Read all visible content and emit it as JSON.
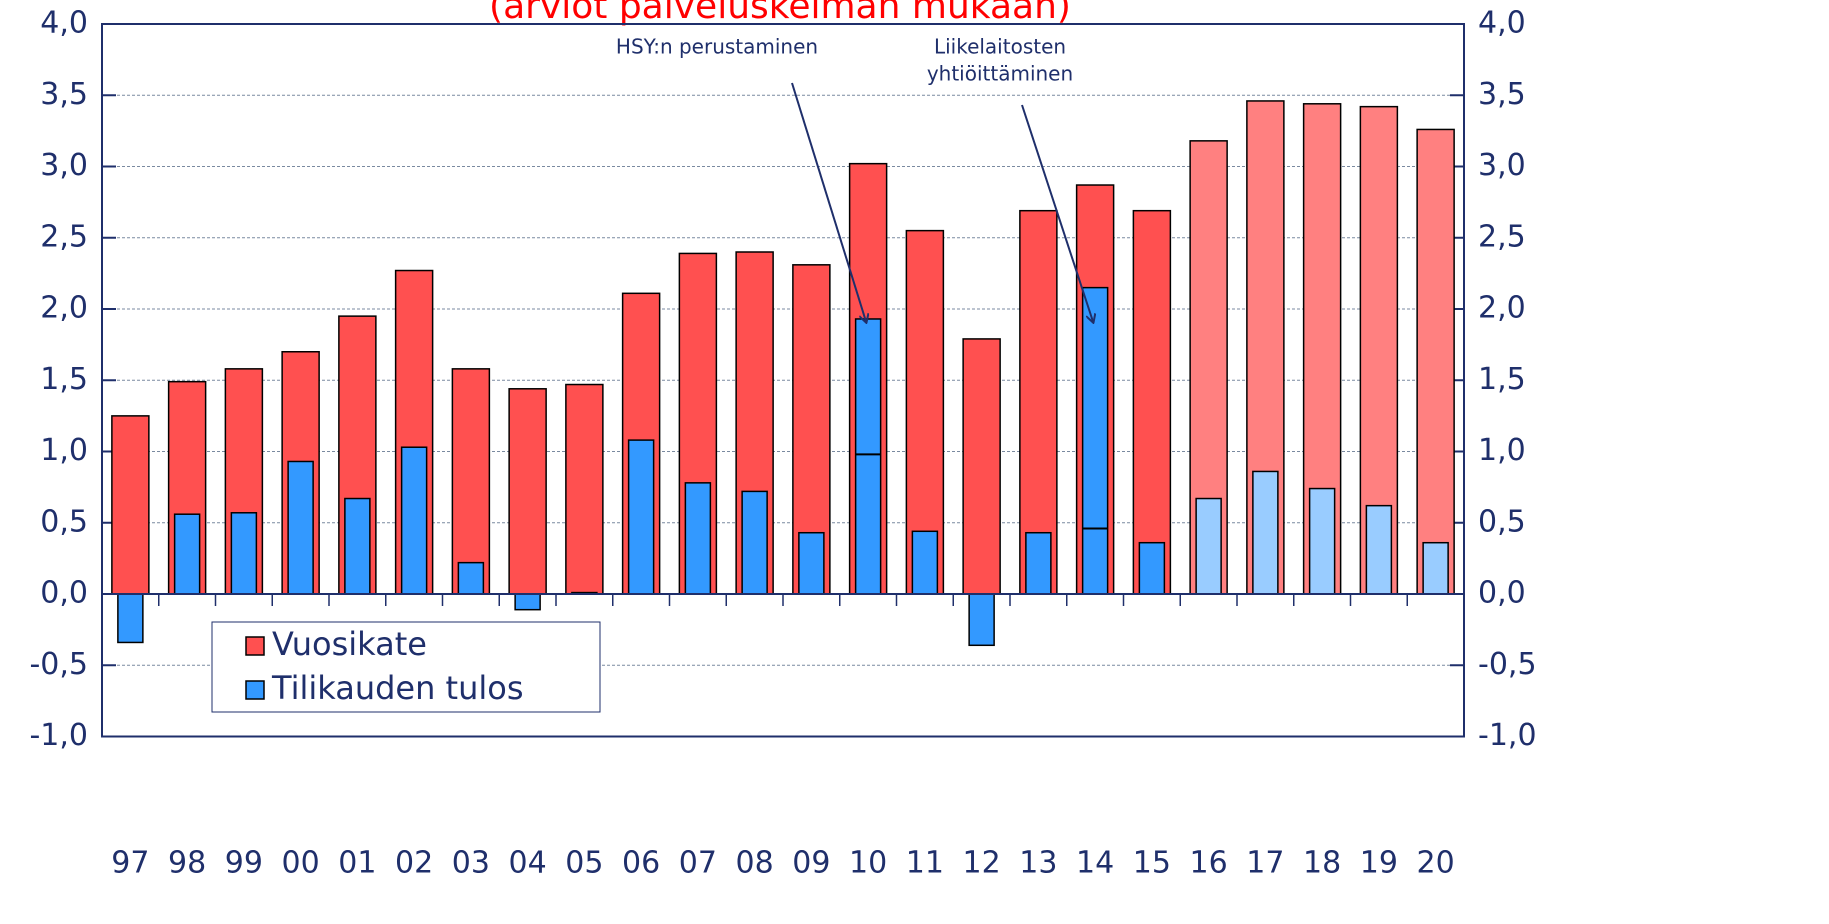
{
  "chart_data": {
    "type": "bar",
    "title": "(arviot palveluskelman mukaan)",
    "categories": [
      "97",
      "98",
      "99",
      "00",
      "01",
      "02",
      "03",
      "04",
      "05",
      "06",
      "07",
      "08",
      "09",
      "10",
      "11",
      "12",
      "13",
      "14",
      "15",
      "16",
      "17",
      "18",
      "19",
      "20"
    ],
    "series": [
      {
        "name": "Vuosikate",
        "color": "#ff5050",
        "colors": [
          "#ff5050",
          "#ff5050",
          "#ff5050",
          "#ff5050",
          "#ff5050",
          "#ff5050",
          "#ff5050",
          "#ff5050",
          "#ff5050",
          "#ff5050",
          "#ff5050",
          "#ff5050",
          "#ff5050",
          "#ff5050",
          "#ff5050",
          "#ff5050",
          "#ff5050",
          "#ff5050",
          "#ff5050",
          "#ff8080",
          "#ff8080",
          "#ff8080",
          "#ff8080",
          "#ff8080"
        ],
        "values": [
          1.25,
          1.49,
          1.58,
          1.7,
          1.95,
          2.27,
          1.58,
          1.44,
          1.47,
          2.11,
          2.39,
          2.4,
          2.31,
          3.02,
          2.55,
          1.79,
          2.69,
          2.87,
          2.69,
          3.18,
          3.46,
          3.44,
          3.42,
          3.26
        ]
      },
      {
        "name": "Tilikauden tulos",
        "color": "#3399ff",
        "colors": [
          "#3399ff",
          "#3399ff",
          "#3399ff",
          "#3399ff",
          "#3399ff",
          "#3399ff",
          "#3399ff",
          "#3399ff",
          "#3399ff",
          "#3399ff",
          "#3399ff",
          "#3399ff",
          "#3399ff",
          "#3399ff",
          "#3399ff",
          "#3399ff",
          "#3399ff",
          "#3399ff",
          "#3399ff",
          "#99ccff",
          "#99ccff",
          "#99ccff",
          "#99ccff",
          "#99ccff"
        ],
        "values": [
          -0.34,
          0.56,
          0.57,
          0.93,
          0.67,
          1.03,
          0.22,
          -0.11,
          0.01,
          1.08,
          0.78,
          0.72,
          0.43,
          1.93,
          0.44,
          -0.36,
          0.43,
          2.15,
          0.36,
          0.67,
          0.86,
          0.74,
          0.62,
          0.36
        ],
        "split_values": [
          null,
          null,
          null,
          null,
          null,
          null,
          null,
          null,
          null,
          null,
          null,
          null,
          null,
          0.98,
          null,
          null,
          null,
          0.46,
          null,
          null,
          null,
          null,
          null,
          null
        ]
      }
    ],
    "annotations": [
      {
        "text": [
          "HSY:n perustaminen"
        ],
        "category": "10"
      },
      {
        "text": [
          "Liikelaitosten",
          "yhtiöittäminen"
        ],
        "category": "14"
      }
    ],
    "ylim": [
      -1,
      4
    ],
    "yticks": [
      {
        "value": -1,
        "label": "-1,0"
      },
      {
        "value": -0.5,
        "label": "-0,5"
      },
      {
        "value": 0,
        "label": "0,0"
      },
      {
        "value": 0.5,
        "label": "0,5"
      },
      {
        "value": 1,
        "label": "1,0"
      },
      {
        "value": 1.5,
        "label": "1,5"
      },
      {
        "value": 2,
        "label": "2,0"
      },
      {
        "value": 2.5,
        "label": "2,5"
      },
      {
        "value": 3,
        "label": "3,0"
      },
      {
        "value": 3.5,
        "label": "3,5"
      },
      {
        "value": 4,
        "label": "4,0"
      }
    ],
    "grid": true,
    "legend": "lower left"
  }
}
